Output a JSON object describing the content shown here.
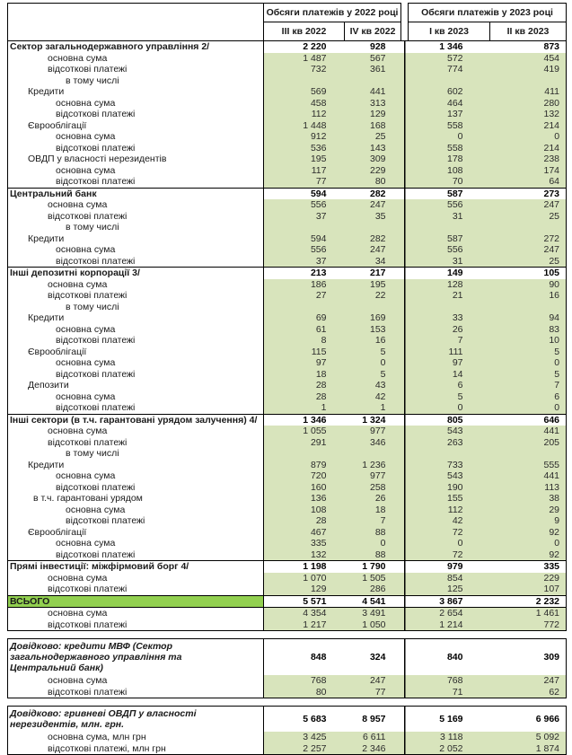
{
  "colors": {
    "light_green": "#D8E4BC",
    "total_green": "#92D050",
    "border": "#000000"
  },
  "header": {
    "group_2022": "Обсяги платежів у 2022 році",
    "group_2023": "Обсяги платежів у 2023 році",
    "quarters": [
      "III кв 2022",
      "IV кв 2022",
      "I кв 2023",
      "II кв 2023"
    ]
  },
  "rows": [
    {
      "label": "Сектор загальнодержавного управління 2/",
      "ind": 0,
      "s": "sec",
      "v": [
        "2 220",
        "928",
        "1 346",
        "873"
      ]
    },
    {
      "label": "основна сума",
      "ind": 3,
      "s": "",
      "v": [
        "1 487",
        "567",
        "572",
        "454"
      ]
    },
    {
      "label": "відсоткові платежі",
      "ind": 3,
      "s": "",
      "v": [
        "732",
        "361",
        "774",
        "419"
      ]
    },
    {
      "label": "в тому числі",
      "ind": 5,
      "s": "",
      "v": [
        "",
        "",
        "",
        ""
      ]
    },
    {
      "label": "Кредити",
      "ind": 1,
      "s": "",
      "v": [
        "569",
        "441",
        "602",
        "411"
      ]
    },
    {
      "label": "основна сума",
      "ind": 4,
      "s": "",
      "v": [
        "458",
        "313",
        "464",
        "280"
      ]
    },
    {
      "label": "відсоткові платежі",
      "ind": 4,
      "s": "",
      "v": [
        "112",
        "129",
        "137",
        "132"
      ]
    },
    {
      "label": "Єврооблігації",
      "ind": 1,
      "s": "",
      "v": [
        "1 448",
        "168",
        "558",
        "214"
      ]
    },
    {
      "label": "основна сума",
      "ind": 4,
      "s": "",
      "v": [
        "912",
        "25",
        "0",
        "0"
      ]
    },
    {
      "label": "відсоткові платежі",
      "ind": 4,
      "s": "",
      "v": [
        "536",
        "143",
        "558",
        "214"
      ]
    },
    {
      "label": "ОВДП у власності нерезидентів",
      "ind": 1,
      "s": "",
      "v": [
        "195",
        "309",
        "178",
        "238"
      ]
    },
    {
      "label": "основна сума",
      "ind": 4,
      "s": "",
      "v": [
        "117",
        "229",
        "108",
        "174"
      ]
    },
    {
      "label": "відсоткові платежі",
      "ind": 4,
      "s": "",
      "v": [
        "77",
        "80",
        "70",
        "64"
      ]
    },
    {
      "label": "Центральний банк",
      "ind": 0,
      "s": "sec",
      "v": [
        "594",
        "282",
        "587",
        "273"
      ]
    },
    {
      "label": "основна сума",
      "ind": 3,
      "s": "",
      "v": [
        "556",
        "247",
        "556",
        "247"
      ]
    },
    {
      "label": "відсоткові платежі",
      "ind": 3,
      "s": "",
      "v": [
        "37",
        "35",
        "31",
        "25"
      ]
    },
    {
      "label": "в тому числі",
      "ind": 5,
      "s": "",
      "v": [
        "",
        "",
        "",
        ""
      ]
    },
    {
      "label": "Кредити",
      "ind": 1,
      "s": "",
      "v": [
        "594",
        "282",
        "587",
        "272"
      ]
    },
    {
      "label": "основна сума",
      "ind": 4,
      "s": "",
      "v": [
        "556",
        "247",
        "556",
        "247"
      ]
    },
    {
      "label": "відсоткові платежі",
      "ind": 4,
      "s": "",
      "v": [
        "37",
        "34",
        "31",
        "25"
      ]
    },
    {
      "label": "Інші депозитні корпорації 3/",
      "ind": 0,
      "s": "sec",
      "v": [
        "213",
        "217",
        "149",
        "105"
      ]
    },
    {
      "label": "основна сума",
      "ind": 3,
      "s": "",
      "v": [
        "186",
        "195",
        "128",
        "90"
      ]
    },
    {
      "label": "відсоткові платежі",
      "ind": 3,
      "s": "",
      "v": [
        "27",
        "22",
        "21",
        "16"
      ]
    },
    {
      "label": "в тому числі",
      "ind": 5,
      "s": "",
      "v": [
        "",
        "",
        "",
        ""
      ]
    },
    {
      "label": "Кредити",
      "ind": 1,
      "s": "",
      "v": [
        "69",
        "169",
        "33",
        "94"
      ]
    },
    {
      "label": "основна сума",
      "ind": 4,
      "s": "",
      "v": [
        "61",
        "153",
        "26",
        "83"
      ]
    },
    {
      "label": "відсоткові платежі",
      "ind": 4,
      "s": "",
      "v": [
        "8",
        "16",
        "7",
        "10"
      ]
    },
    {
      "label": "Єврооблігації",
      "ind": 1,
      "s": "",
      "v": [
        "115",
        "5",
        "111",
        "5"
      ]
    },
    {
      "label": "основна сума",
      "ind": 4,
      "s": "",
      "v": [
        "97",
        "0",
        "97",
        "0"
      ]
    },
    {
      "label": "відсоткові платежі",
      "ind": 4,
      "s": "",
      "v": [
        "18",
        "5",
        "14",
        "5"
      ]
    },
    {
      "label": "Депозити",
      "ind": 1,
      "s": "",
      "v": [
        "28",
        "43",
        "6",
        "7"
      ]
    },
    {
      "label": "основна сума",
      "ind": 4,
      "s": "",
      "v": [
        "28",
        "42",
        "5",
        "6"
      ]
    },
    {
      "label": "відсоткові платежі",
      "ind": 4,
      "s": "",
      "v": [
        "1",
        "1",
        "0",
        "0"
      ]
    },
    {
      "label": "Інші сектори (в т.ч. гарантовані урядом залучення) 4/",
      "ind": 0,
      "s": "sec",
      "v": [
        "1 346",
        "1 324",
        "805",
        "646"
      ]
    },
    {
      "label": "основна сума",
      "ind": 3,
      "s": "",
      "v": [
        "1 055",
        "977",
        "543",
        "441"
      ]
    },
    {
      "label": "відсоткові платежі",
      "ind": 3,
      "s": "",
      "v": [
        "291",
        "346",
        "263",
        "205"
      ]
    },
    {
      "label": "в тому числі",
      "ind": 5,
      "s": "",
      "v": [
        "",
        "",
        "",
        ""
      ]
    },
    {
      "label": "Кредити",
      "ind": 1,
      "s": "",
      "v": [
        "879",
        "1 236",
        "733",
        "555"
      ]
    },
    {
      "label": "основна сума",
      "ind": 4,
      "s": "",
      "v": [
        "720",
        "977",
        "543",
        "441"
      ]
    },
    {
      "label": "відсоткові платежі",
      "ind": 4,
      "s": "",
      "v": [
        "160",
        "258",
        "190",
        "113"
      ]
    },
    {
      "label": "в т.ч. гарантовані урядом",
      "ind": 2,
      "s": "",
      "v": [
        "136",
        "26",
        "155",
        "38"
      ]
    },
    {
      "label": "основна сума",
      "ind": 5,
      "s": "",
      "v": [
        "108",
        "18",
        "112",
        "29"
      ]
    },
    {
      "label": "відсоткові платежі",
      "ind": 5,
      "s": "",
      "v": [
        "28",
        "7",
        "42",
        "9"
      ]
    },
    {
      "label": "Єврооблігації",
      "ind": 1,
      "s": "",
      "v": [
        "467",
        "88",
        "72",
        "92"
      ]
    },
    {
      "label": "основна сума",
      "ind": 4,
      "s": "",
      "v": [
        "335",
        "0",
        "0",
        "0"
      ]
    },
    {
      "label": "відсоткові платежі",
      "ind": 4,
      "s": "",
      "v": [
        "132",
        "88",
        "72",
        "92"
      ]
    },
    {
      "label": "Прямі інвестиції: міжфірмовий борг 4/",
      "ind": 0,
      "s": "sec",
      "v": [
        "1 198",
        "1 790",
        "979",
        "335"
      ]
    },
    {
      "label": "основна сума",
      "ind": 3,
      "s": "",
      "v": [
        "1 070",
        "1 505",
        "854",
        "229"
      ]
    },
    {
      "label": "відсоткові платежі",
      "ind": 3,
      "s": "",
      "v": [
        "129",
        "286",
        "125",
        "107"
      ]
    },
    {
      "label": "ВСЬОГО",
      "ind": 0,
      "s": "tot",
      "v": [
        "5 571",
        "4 541",
        "3 867",
        "2 232"
      ]
    },
    {
      "label": "основна сума",
      "ind": 3,
      "s": "",
      "v": [
        "4 354",
        "3 491",
        "2 654",
        "1 461"
      ]
    },
    {
      "label": "відсоткові платежі",
      "ind": 3,
      "s": "last",
      "v": [
        "1 217",
        "1 050",
        "1 214",
        "772"
      ]
    }
  ],
  "memos": [
    {
      "label": "Довідково: кредити МВФ (Сектор загальнодержавного управління та Центральний банк)",
      "v": [
        "848",
        "324",
        "840",
        "309"
      ],
      "rows": [
        {
          "label": "основна сума",
          "v": [
            "768",
            "247",
            "768",
            "247"
          ]
        },
        {
          "label": "відсоткові платежі",
          "v": [
            "80",
            "77",
            "71",
            "62"
          ]
        }
      ]
    },
    {
      "label": "Довідково: гривневі ОВДП у власності нерезидентів, млн. грн.",
      "v": [
        "5 683",
        "8 957",
        "5 169",
        "6 966"
      ],
      "rows": [
        {
          "label": "основна сума, млн грн",
          "v": [
            "3 425",
            "6 611",
            "3 118",
            "5 092"
          ]
        },
        {
          "label": "відсоткові платежі, млн грн",
          "v": [
            "2 257",
            "2 346",
            "2 052",
            "1 874"
          ]
        }
      ]
    }
  ]
}
